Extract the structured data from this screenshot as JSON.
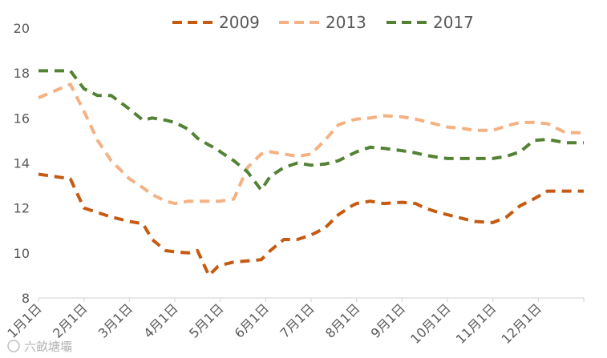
{
  "watermark": "六畝塘壩",
  "chart_data": {
    "type": "line",
    "title": "",
    "xlabel": "",
    "ylabel": "",
    "ylim": [
      8,
      20
    ],
    "yticks": [
      8,
      10,
      12,
      14,
      16,
      18,
      20
    ],
    "x_ticks": [
      "1月1日",
      "2月1日",
      "3月1日",
      "4月1日",
      "5月1日",
      "6月1日",
      "7月1日",
      "8月1日",
      "9月1日",
      "10月1日",
      "11月1日",
      "12月1日"
    ],
    "grid": false,
    "legend": "top",
    "x": [
      1.0,
      1.7,
      2.0,
      2.3,
      2.6,
      3.0,
      3.3,
      3.5,
      3.8,
      4.0,
      4.3,
      4.5,
      4.75,
      4.95,
      5.0,
      5.3,
      5.6,
      5.9,
      6.1,
      6.4,
      6.7,
      7.0,
      7.3,
      7.6,
      7.9,
      8.0,
      8.3,
      8.6,
      9.0,
      9.3,
      9.5,
      9.8,
      10.0,
      10.3,
      10.6,
      11.0,
      11.3,
      11.6,
      11.9,
      12.2,
      12.6,
      13.0
    ],
    "series": [
      {
        "name": "2009",
        "color": "#c55a11",
        "values": [
          13.5,
          13.3,
          12.0,
          11.8,
          11.6,
          11.4,
          11.3,
          10.6,
          10.1,
          10.05,
          10.0,
          10.1,
          9.0,
          9.4,
          9.45,
          9.6,
          9.65,
          9.7,
          10.1,
          10.6,
          10.6,
          10.8,
          11.1,
          11.7,
          12.1,
          12.2,
          12.3,
          12.2,
          12.25,
          12.2,
          12.0,
          11.8,
          11.7,
          11.55,
          11.4,
          11.35,
          11.6,
          12.1,
          12.4,
          12.75,
          12.75,
          12.75
        ]
      },
      {
        "name": "2013",
        "color": "#f4b183",
        "values": [
          16.9,
          17.5,
          16.3,
          15.0,
          14.1,
          13.3,
          12.9,
          12.6,
          12.3,
          12.2,
          12.3,
          12.3,
          12.3,
          12.3,
          12.3,
          12.4,
          13.8,
          14.4,
          14.5,
          14.4,
          14.3,
          14.4,
          15.0,
          15.7,
          15.9,
          15.95,
          16.0,
          16.1,
          16.05,
          15.95,
          15.85,
          15.7,
          15.6,
          15.55,
          15.45,
          15.45,
          15.65,
          15.8,
          15.8,
          15.75,
          15.35,
          15.35
        ]
      },
      {
        "name": "2017",
        "color": "#548235",
        "values": [
          18.1,
          18.1,
          17.3,
          17.0,
          17.0,
          16.4,
          15.9,
          16.0,
          15.9,
          15.8,
          15.5,
          15.1,
          14.8,
          14.6,
          14.5,
          14.1,
          13.6,
          12.8,
          13.4,
          13.8,
          14.0,
          13.9,
          13.95,
          14.1,
          14.4,
          14.5,
          14.7,
          14.65,
          14.55,
          14.45,
          14.35,
          14.25,
          14.2,
          14.2,
          14.2,
          14.2,
          14.3,
          14.5,
          15.0,
          15.05,
          14.9,
          14.9
        ]
      }
    ]
  }
}
